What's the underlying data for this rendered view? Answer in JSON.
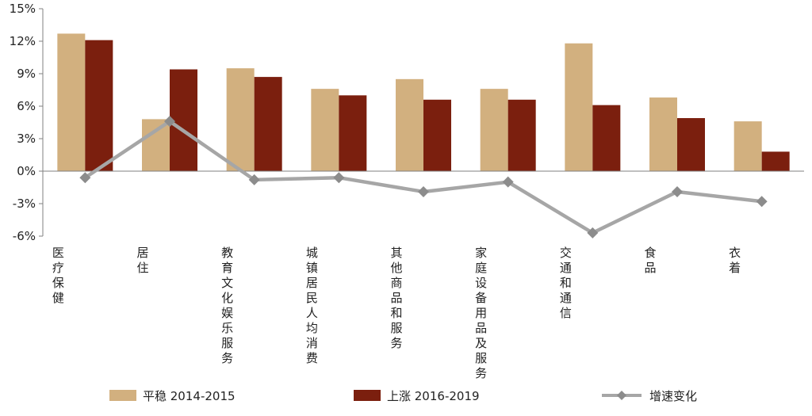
{
  "chart_data": {
    "type": "bar",
    "categories": [
      "医疗保健",
      "居住",
      "教育文化娱乐服务",
      "城镇居民人均消费",
      "其他商品和服务",
      "家庭设备用品及服务",
      "交通和通信",
      "食品",
      "衣着"
    ],
    "series": [
      {
        "name": "平稳 2014-2015",
        "type": "bar",
        "color": "#d2b07f",
        "values": [
          12.7,
          4.8,
          9.5,
          7.6,
          8.5,
          7.6,
          11.8,
          6.8,
          4.6
        ]
      },
      {
        "name": "上涨 2016-2019",
        "type": "bar",
        "color": "#7b1f0e",
        "values": [
          12.1,
          9.4,
          8.7,
          7.0,
          6.6,
          6.6,
          6.1,
          4.9,
          1.8
        ]
      },
      {
        "name": "增速变化",
        "type": "line",
        "color": "#a6a6a6",
        "marker": "diamond",
        "values": [
          -0.6,
          4.6,
          -0.8,
          -0.6,
          -1.9,
          -1.0,
          -5.7,
          -1.9,
          -2.8
        ]
      }
    ],
    "yticks": [
      "15%",
      "12%",
      "9%",
      "6%",
      "3%",
      "0%",
      "-3%",
      "-6%"
    ],
    "ytick_values": [
      15,
      12,
      9,
      6,
      3,
      0,
      -3,
      -6
    ],
    "ylim": [
      -6,
      15
    ],
    "grid": false,
    "legend_position": "bottom"
  }
}
